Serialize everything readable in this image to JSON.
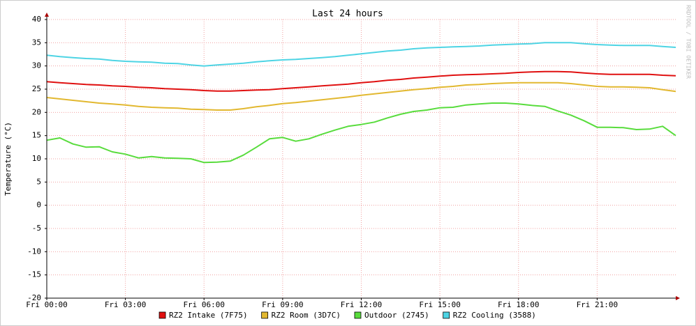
{
  "chart_data": {
    "type": "line",
    "title": "Last 24 hours",
    "y_label": "Temperature (°C)",
    "watermark": "RRDTOOL / TOBI OETIKER",
    "x": [
      0,
      0.5,
      1,
      1.5,
      2,
      2.5,
      3,
      3.5,
      4,
      4.5,
      5,
      5.5,
      6,
      6.5,
      7,
      7.5,
      8,
      8.5,
      9,
      9.5,
      10,
      10.5,
      11,
      11.5,
      12,
      12.5,
      13,
      13.5,
      14,
      14.5,
      15,
      15.5,
      16,
      16.5,
      17,
      17.5,
      18,
      18.5,
      19,
      19.5,
      20,
      20.5,
      21,
      21.5,
      22,
      22.5,
      23,
      23.5,
      24
    ],
    "xlim": [
      0,
      24
    ],
    "xticks": [
      {
        "value": 0,
        "label": "Fri 00:00"
      },
      {
        "value": 3,
        "label": "Fri 03:00"
      },
      {
        "value": 6,
        "label": "Fri 06:00"
      },
      {
        "value": 9,
        "label": "Fri 09:00"
      },
      {
        "value": 12,
        "label": "Fri 12:00"
      },
      {
        "value": 15,
        "label": "Fri 15:00"
      },
      {
        "value": 18,
        "label": "Fri 18:00"
      },
      {
        "value": 21,
        "label": "Fri 21:00"
      }
    ],
    "ylim": [
      -20,
      40
    ],
    "yticks": [
      -20,
      -15,
      -10,
      -5,
      0,
      5,
      10,
      15,
      20,
      25,
      30,
      35,
      40
    ],
    "grid": true,
    "legend": "bottom",
    "series": [
      {
        "name": "RZ2 Intake (7F75)",
        "color": "#e01010",
        "values": [
          26.6,
          26.4,
          26.2,
          26.0,
          25.9,
          25.7,
          25.6,
          25.4,
          25.3,
          25.1,
          25.0,
          24.9,
          24.7,
          24.6,
          24.6,
          24.7,
          24.8,
          24.9,
          25.1,
          25.3,
          25.5,
          25.7,
          25.9,
          26.1,
          26.4,
          26.6,
          26.9,
          27.1,
          27.4,
          27.6,
          27.8,
          28.0,
          28.1,
          28.2,
          28.3,
          28.4,
          28.6,
          28.7,
          28.8,
          28.8,
          28.7,
          28.5,
          28.3,
          28.2,
          28.2,
          28.2,
          28.2,
          28.0,
          27.9
        ]
      },
      {
        "name": "RZ2 Room (3D7C)",
        "color": "#e2b830",
        "values": [
          23.2,
          22.9,
          22.6,
          22.3,
          22.0,
          21.8,
          21.6,
          21.3,
          21.1,
          21.0,
          20.9,
          20.7,
          20.6,
          20.5,
          20.5,
          20.8,
          21.2,
          21.5,
          21.9,
          22.1,
          22.4,
          22.7,
          23.0,
          23.3,
          23.7,
          24.0,
          24.3,
          24.6,
          24.9,
          25.1,
          25.4,
          25.6,
          25.9,
          26.0,
          26.2,
          26.3,
          26.4,
          26.4,
          26.4,
          26.4,
          26.2,
          25.9,
          25.6,
          25.5,
          25.5,
          25.4,
          25.3,
          24.9,
          24.5
        ]
      },
      {
        "name": "Outdoor (2745)",
        "color": "#58dc3c",
        "values": [
          14.0,
          14.5,
          13.2,
          12.5,
          12.6,
          11.5,
          11.0,
          10.2,
          10.5,
          10.2,
          10.1,
          10.0,
          9.2,
          9.3,
          9.5,
          10.8,
          12.5,
          14.3,
          14.6,
          13.8,
          14.3,
          15.3,
          16.2,
          17.0,
          17.4,
          17.9,
          18.8,
          19.6,
          20.2,
          20.5,
          21.0,
          21.1,
          21.6,
          21.8,
          22.0,
          22.0,
          21.8,
          21.5,
          21.3,
          20.3,
          19.4,
          18.2,
          16.8,
          16.8,
          16.7,
          16.3,
          16.4,
          17.0,
          15.0
        ]
      },
      {
        "name": "RZ2 Cooling (3588)",
        "color": "#4ed4e4",
        "values": [
          32.3,
          32.0,
          31.8,
          31.6,
          31.5,
          31.2,
          31.0,
          30.9,
          30.8,
          30.6,
          30.5,
          30.2,
          30.0,
          30.2,
          30.4,
          30.6,
          30.9,
          31.1,
          31.3,
          31.4,
          31.6,
          31.8,
          32.0,
          32.3,
          32.6,
          32.9,
          33.2,
          33.4,
          33.7,
          33.9,
          34.0,
          34.1,
          34.2,
          34.3,
          34.5,
          34.6,
          34.7,
          34.8,
          35.0,
          35.0,
          35.0,
          34.8,
          34.6,
          34.5,
          34.4,
          34.4,
          34.4,
          34.2,
          34.0
        ]
      }
    ]
  }
}
